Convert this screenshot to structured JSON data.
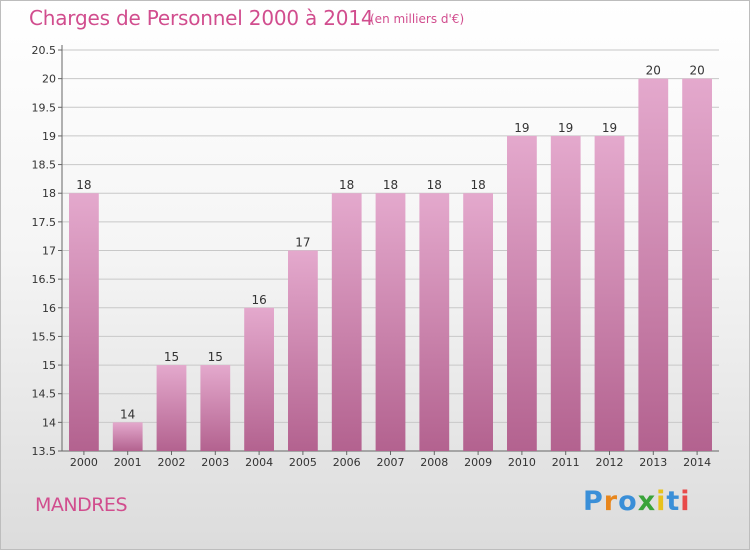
{
  "header": {
    "title": "Charges de Personnel 2000 à 2014",
    "subtitle": "(en milliers d'€)"
  },
  "footer": {
    "place": "MANDRES",
    "logo_letters": [
      {
        "char": "P",
        "color": "#3a8fd8"
      },
      {
        "char": "r",
        "color": "#e8861c"
      },
      {
        "char": "o",
        "color": "#3a8fd8"
      },
      {
        "char": "x",
        "color": "#3aa33a"
      },
      {
        "char": "i",
        "color": "#e8c21c"
      },
      {
        "char": "t",
        "color": "#3a8fd8"
      },
      {
        "char": "i",
        "color": "#e84a4a"
      }
    ]
  },
  "colors": {
    "accent": "#d14d8e",
    "bar_top": "#e4a9cd",
    "bar_bottom": "#b3628f",
    "grid": "#c8c8c8"
  },
  "chart_data": {
    "type": "bar",
    "title": "Charges de Personnel 2000 à 2014",
    "subtitle": "(en milliers d'€)",
    "categories": [
      "2000",
      "2001",
      "2002",
      "2003",
      "2004",
      "2005",
      "2006",
      "2007",
      "2008",
      "2009",
      "2010",
      "2011",
      "2012",
      "2013",
      "2014"
    ],
    "values": [
      18,
      14,
      15,
      15,
      16,
      17,
      18,
      18,
      18,
      18,
      19,
      19,
      19,
      20,
      20
    ],
    "value_labels": [
      "18",
      "14",
      "15",
      "15",
      "16",
      "17",
      "18",
      "18",
      "18",
      "18",
      "19",
      "19",
      "19",
      "20",
      "20"
    ],
    "yticks": [
      13.5,
      14,
      14.5,
      15,
      15.5,
      16,
      16.5,
      17,
      17.5,
      18,
      18.5,
      19,
      19.5,
      20,
      20.5
    ],
    "ytick_labels": [
      "13.5",
      "14",
      "14.5",
      "15",
      "15.5",
      "16",
      "16.5",
      "17",
      "17.5",
      "18",
      "18.5",
      "19",
      "19.5",
      "20",
      "20.5"
    ],
    "ylim": [
      13.5,
      20.5
    ],
    "xlabel": "",
    "ylabel": "",
    "grid": true,
    "legend": "none"
  }
}
